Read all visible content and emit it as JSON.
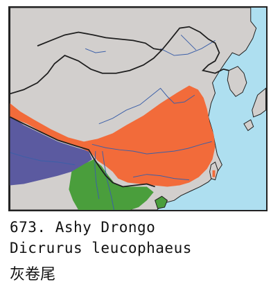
{
  "species": {
    "number_label": "673. Ashy Drongo",
    "scientific_name": "Dicrurus leucophaeus",
    "chinese_name": "灰卷尾"
  },
  "map": {
    "colors": {
      "sea": "#aedff0",
      "land": "#d2cfcd",
      "breeding_range": "#f26b3a",
      "winter_range": "#5b5aa0",
      "resident_range": "#4a9e3c",
      "river": "#3b5fa8",
      "border": "#1e1e1e"
    },
    "icons": [
      "china-distribution-map"
    ]
  }
}
